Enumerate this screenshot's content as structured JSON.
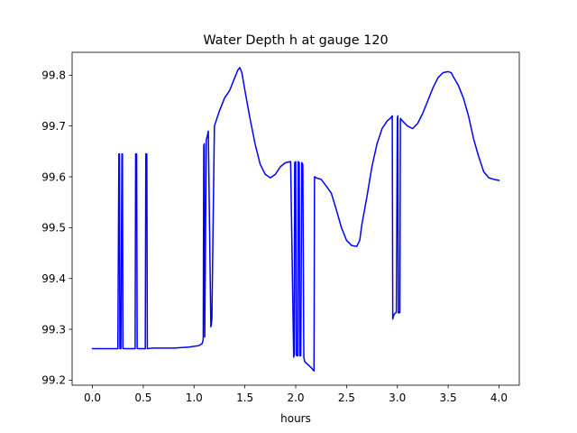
{
  "chart_data": {
    "type": "line",
    "title": "Water Depth h at gauge 120",
    "xlabel": "hours",
    "ylabel": "",
    "xlim": [
      -0.2,
      4.2
    ],
    "ylim": [
      99.19,
      99.845
    ],
    "x_ticks": [
      0.0,
      0.5,
      1.0,
      1.5,
      2.0,
      2.5,
      3.0,
      3.5,
      4.0
    ],
    "x_tick_labels": [
      "0.0",
      "0.5",
      "1.0",
      "1.5",
      "2.0",
      "2.5",
      "3.0",
      "3.5",
      "4.0"
    ],
    "y_ticks": [
      99.2,
      99.3,
      99.4,
      99.5,
      99.6,
      99.7,
      99.8
    ],
    "y_tick_labels": [
      "99.2",
      "99.3",
      "99.4",
      "99.5",
      "99.6",
      "99.7",
      "99.8"
    ],
    "grid": false,
    "series": [
      {
        "color": "#0000ff",
        "x": [
          0.0,
          0.24,
          0.25,
          0.26,
          0.265,
          0.27,
          0.28,
          0.29,
          0.295,
          0.3,
          0.42,
          0.425,
          0.435,
          0.44,
          0.52,
          0.525,
          0.535,
          0.54,
          0.6,
          0.8,
          0.95,
          1.05,
          1.08,
          1.09,
          1.095,
          1.1,
          1.105,
          1.12,
          1.13,
          1.14,
          1.165,
          1.17,
          1.175,
          1.2,
          1.25,
          1.3,
          1.35,
          1.4,
          1.43,
          1.45,
          1.47,
          1.5,
          1.55,
          1.6,
          1.65,
          1.7,
          1.75,
          1.8,
          1.85,
          1.9,
          1.95,
          1.98,
          1.985,
          1.99,
          2.0,
          2.005,
          2.01,
          2.02,
          2.025,
          2.035,
          2.04,
          2.05,
          2.06,
          2.07,
          2.08,
          2.085,
          2.09,
          2.15,
          2.18,
          2.185,
          2.19,
          2.2,
          2.25,
          2.3,
          2.35,
          2.4,
          2.45,
          2.5,
          2.55,
          2.6,
          2.63,
          2.65,
          2.7,
          2.75,
          2.8,
          2.85,
          2.9,
          2.93,
          2.95,
          2.955,
          2.96,
          2.97,
          2.98,
          2.99,
          3.0,
          3.005,
          3.01,
          3.02,
          3.025,
          3.03,
          3.05,
          3.1,
          3.15,
          3.2,
          3.25,
          3.3,
          3.35,
          3.4,
          3.45,
          3.5,
          3.53,
          3.55,
          3.6,
          3.65,
          3.7,
          3.75,
          3.8,
          3.85,
          3.9,
          3.95,
          4.0
        ],
        "y": [
          99.262,
          99.262,
          99.262,
          99.645,
          99.645,
          99.262,
          99.262,
          99.645,
          99.645,
          99.262,
          99.262,
          99.645,
          99.645,
          99.262,
          99.262,
          99.645,
          99.645,
          99.262,
          99.263,
          99.263,
          99.265,
          99.268,
          99.272,
          99.28,
          99.66,
          99.665,
          99.285,
          99.672,
          99.68,
          99.69,
          99.305,
          99.31,
          99.32,
          99.7,
          99.73,
          99.755,
          99.77,
          99.795,
          99.81,
          99.815,
          99.805,
          99.77,
          99.715,
          99.665,
          99.625,
          99.605,
          99.598,
          99.605,
          99.62,
          99.628,
          99.63,
          99.245,
          99.25,
          99.628,
          99.63,
          99.25,
          99.248,
          99.248,
          99.63,
          99.628,
          99.248,
          99.248,
          99.628,
          99.624,
          99.244,
          99.24,
          99.236,
          99.225,
          99.218,
          99.6,
          99.6,
          99.598,
          99.595,
          99.582,
          99.568,
          99.535,
          99.5,
          99.475,
          99.465,
          99.463,
          99.475,
          99.505,
          99.56,
          99.62,
          99.665,
          99.695,
          99.71,
          99.715,
          99.72,
          99.32,
          99.325,
          99.33,
          99.332,
          99.333,
          99.715,
          99.72,
          99.332,
          99.333,
          99.333,
          99.715,
          99.71,
          99.7,
          99.695,
          99.705,
          99.725,
          99.75,
          99.775,
          99.795,
          99.805,
          99.807,
          99.805,
          99.797,
          99.78,
          99.755,
          99.72,
          99.675,
          99.64,
          99.61,
          99.598,
          99.595,
          99.593
        ]
      }
    ]
  }
}
